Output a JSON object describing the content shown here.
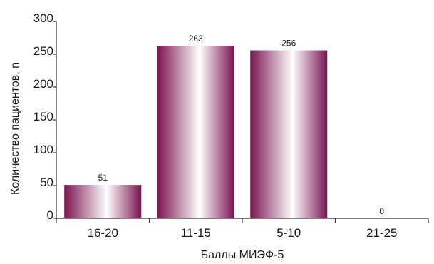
{
  "chart_data": {
    "type": "bar",
    "categories": [
      "16-20",
      "11-15",
      "5-10",
      "21-25"
    ],
    "values": [
      51,
      263,
      256,
      0
    ],
    "data_labels": [
      "51",
      "263",
      "256",
      "0"
    ],
    "y_ticks": [
      "0",
      "50",
      "100",
      "150",
      "200",
      "250",
      "300"
    ],
    "title": "",
    "xlabel": "Баллы МИЭФ-5",
    "ylabel": "Количество пациентов, n",
    "ylim": [
      0,
      300
    ],
    "grid": false,
    "legend": "none",
    "colors": {
      "bar_dark": "#7a1450",
      "bar_light": "#ffffff",
      "axis": "#333333"
    }
  }
}
